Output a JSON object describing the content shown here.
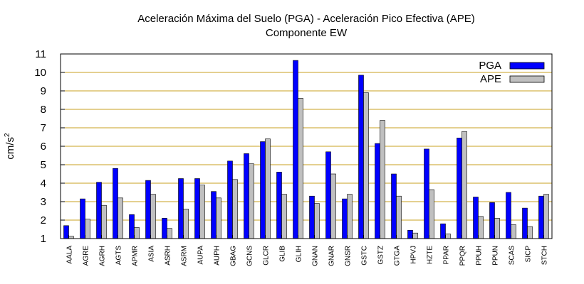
{
  "chart_data": {
    "type": "bar",
    "title": "Aceleración Máxima del Suelo (PGA) -  Aceleración Pico Efectiva (APE)",
    "subtitle": "Componente EW",
    "xlabel": "",
    "ylabel": "cm/s",
    "ylabel_superscript": "2",
    "ylim": [
      1,
      11
    ],
    "yticks": [
      1,
      2,
      3,
      4,
      5,
      6,
      7,
      8,
      9,
      10,
      11
    ],
    "grid": "horizontal",
    "legend_position": "top-right",
    "categories": [
      "AALA",
      "AGRE",
      "AGRH",
      "AGTS",
      "APMR",
      "ASIA",
      "ASRH",
      "ASRM",
      "AUPA",
      "AUPH",
      "GBAG",
      "GCNS",
      "GLCR",
      "GLIB",
      "GLIH",
      "GNAN",
      "GNAR",
      "GNSR",
      "GSTC",
      "GSTZ",
      "GTGA",
      "HPVJ",
      "HZTE",
      "PPAR",
      "PPQR",
      "PPUH",
      "PPUN",
      "SCAS",
      "SICP",
      "STCH"
    ],
    "series": [
      {
        "name": "PGA",
        "color": "#0000ff",
        "values": [
          1.7,
          3.15,
          4.05,
          4.8,
          2.3,
          4.15,
          2.1,
          4.25,
          4.25,
          3.55,
          5.2,
          5.6,
          6.25,
          4.6,
          10.65,
          3.3,
          5.7,
          3.15,
          9.85,
          6.15,
          4.5,
          1.45,
          5.85,
          1.8,
          6.45,
          3.25,
          2.95,
          3.5,
          2.65,
          3.3
        ]
      },
      {
        "name": "APE",
        "color": "#c0c0c0",
        "values": [
          1.12,
          2.05,
          2.8,
          3.2,
          1.6,
          3.4,
          1.55,
          2.6,
          3.9,
          3.2,
          4.2,
          5.05,
          6.4,
          3.4,
          8.6,
          2.9,
          4.5,
          3.4,
          8.9,
          7.4,
          3.3,
          1.3,
          3.65,
          1.25,
          6.8,
          2.2,
          2.1,
          1.75,
          1.65,
          3.4
        ]
      }
    ],
    "colors": {
      "grid": "#c8a020",
      "axis": "#000000",
      "bar_outline": "#000000"
    }
  }
}
